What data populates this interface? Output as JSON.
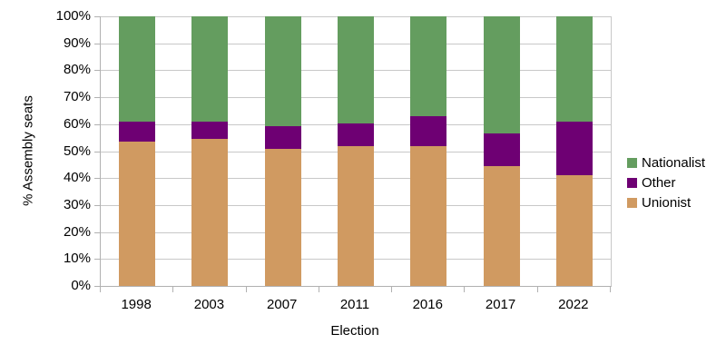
{
  "chart": {
    "y_axis_title": "% Assembly seats",
    "x_axis_title": "Election",
    "y_tick_labels": [
      "100%",
      "90%",
      "80%",
      "70%",
      "60%",
      "50%",
      "40%",
      "30%",
      "20%",
      "10%",
      "0%"
    ],
    "colors": {
      "nationalist_green": "#649D5F",
      "other_purple": "#6E0073",
      "unionist_tan": "#D09A61",
      "gridline": "#C8C8C8",
      "axis": "#B1B1B1"
    },
    "legend": {
      "items": [
        {
          "label": "Nationalist",
          "color": "#649D5F"
        },
        {
          "label": "Other",
          "color": "#6E0073"
        },
        {
          "label": "Unionist",
          "color": "#D09A61"
        }
      ]
    }
  },
  "chart_data": {
    "type": "bar",
    "stacked": true,
    "title": "",
    "xlabel": "Election",
    "ylabel": "% Assembly seats",
    "categories": [
      "1998",
      "2003",
      "2007",
      "2011",
      "2016",
      "2017",
      "2022"
    ],
    "series": [
      {
        "name": "Unionist",
        "color": "#D09A61",
        "values": [
          53.7,
          54.6,
          50.9,
          51.9,
          51.9,
          44.4,
          41.1
        ]
      },
      {
        "name": "Other",
        "color": "#6E0073",
        "values": [
          7.4,
          6.5,
          8.3,
          8.3,
          11.1,
          12.2,
          20.0
        ]
      },
      {
        "name": "Nationalist",
        "color": "#649D5F",
        "values": [
          38.9,
          38.9,
          40.8,
          39.8,
          37.0,
          43.4,
          38.9
        ]
      }
    ],
    "ylim": [
      0,
      100
    ],
    "y_tick_step": 10,
    "grid": true,
    "legend_position": "right",
    "legend_order": [
      "Nationalist",
      "Other",
      "Unionist"
    ]
  }
}
